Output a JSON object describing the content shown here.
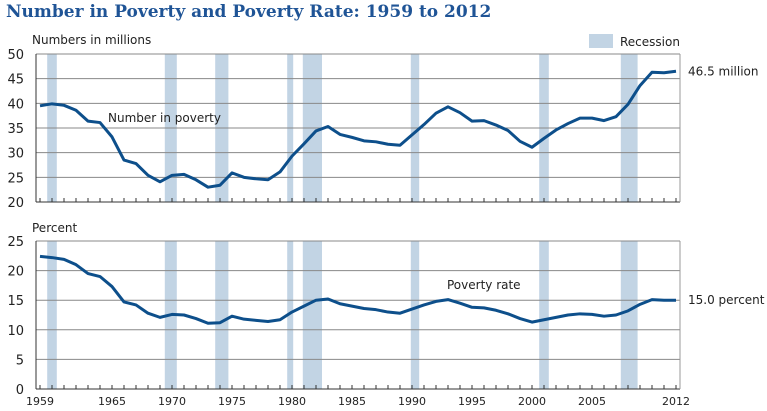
{
  "title": "Number in Poverty and Poverty Rate: 1959 to 2012",
  "colors": {
    "line": "#0d4f8b",
    "recession": "#c2d4e4",
    "grid": "#888888",
    "title": "#1f5496"
  },
  "legend": {
    "label": "Recession",
    "placement": "top-right"
  },
  "chart_data": [
    {
      "type": "line",
      "ylabel": "Numbers in millions",
      "ylim": [
        20,
        50
      ],
      "yticks": [
        20,
        25,
        30,
        35,
        40,
        45,
        50
      ],
      "series_label": "Number in poverty",
      "end_label": "46.5 million",
      "grid": true,
      "x": [
        1959,
        1960,
        1961,
        1962,
        1963,
        1964,
        1965,
        1966,
        1967,
        1968,
        1969,
        1970,
        1971,
        1972,
        1973,
        1974,
        1975,
        1976,
        1977,
        1978,
        1979,
        1980,
        1981,
        1982,
        1983,
        1984,
        1985,
        1986,
        1987,
        1988,
        1989,
        1990,
        1991,
        1992,
        1993,
        1994,
        1995,
        1996,
        1997,
        1998,
        1999,
        2000,
        2001,
        2002,
        2003,
        2004,
        2005,
        2006,
        2007,
        2008,
        2009,
        2010,
        2011,
        2012
      ],
      "values": [
        39.5,
        39.9,
        39.6,
        38.6,
        36.4,
        36.1,
        33.2,
        28.5,
        27.8,
        25.4,
        24.1,
        25.4,
        25.6,
        24.5,
        23.0,
        23.4,
        25.9,
        25.0,
        24.7,
        24.5,
        26.1,
        29.3,
        31.8,
        34.4,
        35.3,
        33.7,
        33.1,
        32.4,
        32.2,
        31.7,
        31.5,
        33.6,
        35.7,
        38.0,
        39.3,
        38.1,
        36.4,
        36.5,
        35.6,
        34.5,
        32.3,
        31.1,
        32.9,
        34.6,
        35.9,
        37.0,
        37.0,
        36.5,
        37.3,
        39.8,
        43.6,
        46.3,
        46.2,
        46.5
      ]
    },
    {
      "type": "line",
      "ylabel": "Percent",
      "ylim": [
        0,
        25
      ],
      "yticks": [
        0,
        5,
        10,
        15,
        20,
        25
      ],
      "series_label": "Poverty rate",
      "end_label": "15.0 percent",
      "grid": true,
      "x": [
        1959,
        1960,
        1961,
        1962,
        1963,
        1964,
        1965,
        1966,
        1967,
        1968,
        1969,
        1970,
        1971,
        1972,
        1973,
        1974,
        1975,
        1976,
        1977,
        1978,
        1979,
        1980,
        1981,
        1982,
        1983,
        1984,
        1985,
        1986,
        1987,
        1988,
        1989,
        1990,
        1991,
        1992,
        1993,
        1994,
        1995,
        1996,
        1997,
        1998,
        1999,
        2000,
        2001,
        2002,
        2003,
        2004,
        2005,
        2006,
        2007,
        2008,
        2009,
        2010,
        2011,
        2012
      ],
      "values": [
        22.4,
        22.2,
        21.9,
        21.0,
        19.5,
        19.0,
        17.3,
        14.7,
        14.2,
        12.8,
        12.1,
        12.6,
        12.5,
        11.9,
        11.1,
        11.2,
        12.3,
        11.8,
        11.6,
        11.4,
        11.7,
        13.0,
        14.0,
        15.0,
        15.2,
        14.4,
        14.0,
        13.6,
        13.4,
        13.0,
        12.8,
        13.5,
        14.2,
        14.8,
        15.1,
        14.5,
        13.8,
        13.7,
        13.3,
        12.7,
        11.9,
        11.3,
        11.7,
        12.1,
        12.5,
        12.7,
        12.6,
        12.3,
        12.5,
        13.2,
        14.3,
        15.1,
        15.0,
        15.0
      ]
    }
  ],
  "xticks": [
    1959,
    1965,
    1970,
    1975,
    1980,
    1985,
    1990,
    1995,
    2000,
    2005,
    2012
  ],
  "recessions": [
    [
      1959.6,
      1960.4
    ],
    [
      1969.4,
      1970.4
    ],
    [
      1973.6,
      1974.7
    ],
    [
      1979.6,
      1980.1
    ],
    [
      1980.9,
      1982.5
    ],
    [
      1989.9,
      1990.6
    ],
    [
      2000.6,
      2001.4
    ],
    [
      2007.4,
      2008.8
    ]
  ]
}
